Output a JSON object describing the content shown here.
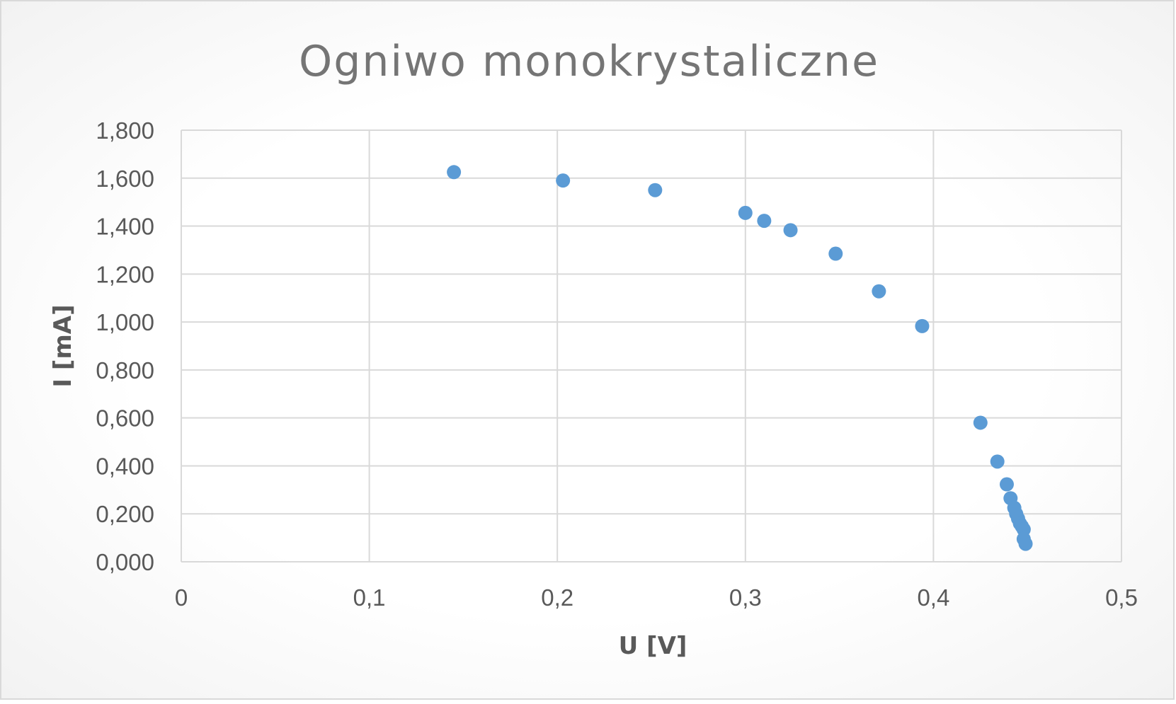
{
  "chart_data": {
    "type": "scatter",
    "title": "Ogniwo monokrystaliczne",
    "xlabel": "U [V]",
    "ylabel": "I [mA]",
    "xlim": [
      0,
      0.5
    ],
    "ylim": [
      0,
      1.8
    ],
    "x_ticks": [
      "0",
      "0,1",
      "0,2",
      "0,3",
      "0,4",
      "0,5"
    ],
    "y_ticks": [
      "0,000",
      "0,200",
      "0,400",
      "0,600",
      "0,800",
      "1,000",
      "1,200",
      "1,400",
      "1,600",
      "1,800"
    ],
    "grid": true,
    "legend": "none",
    "marker_color": "#5b9bd5",
    "points": [
      {
        "x": 0.145,
        "y": 1.625
      },
      {
        "x": 0.203,
        "y": 1.59
      },
      {
        "x": 0.252,
        "y": 1.55
      },
      {
        "x": 0.3,
        "y": 1.455
      },
      {
        "x": 0.31,
        "y": 1.422
      },
      {
        "x": 0.324,
        "y": 1.383
      },
      {
        "x": 0.348,
        "y": 1.285
      },
      {
        "x": 0.371,
        "y": 1.128
      },
      {
        "x": 0.394,
        "y": 0.983
      },
      {
        "x": 0.425,
        "y": 0.58
      },
      {
        "x": 0.434,
        "y": 0.418
      },
      {
        "x": 0.439,
        "y": 0.323
      },
      {
        "x": 0.441,
        "y": 0.265
      },
      {
        "x": 0.443,
        "y": 0.225
      },
      {
        "x": 0.444,
        "y": 0.2
      },
      {
        "x": 0.445,
        "y": 0.18
      },
      {
        "x": 0.446,
        "y": 0.16
      },
      {
        "x": 0.447,
        "y": 0.148
      },
      {
        "x": 0.448,
        "y": 0.135
      },
      {
        "x": 0.448,
        "y": 0.095
      },
      {
        "x": 0.449,
        "y": 0.075
      }
    ]
  }
}
